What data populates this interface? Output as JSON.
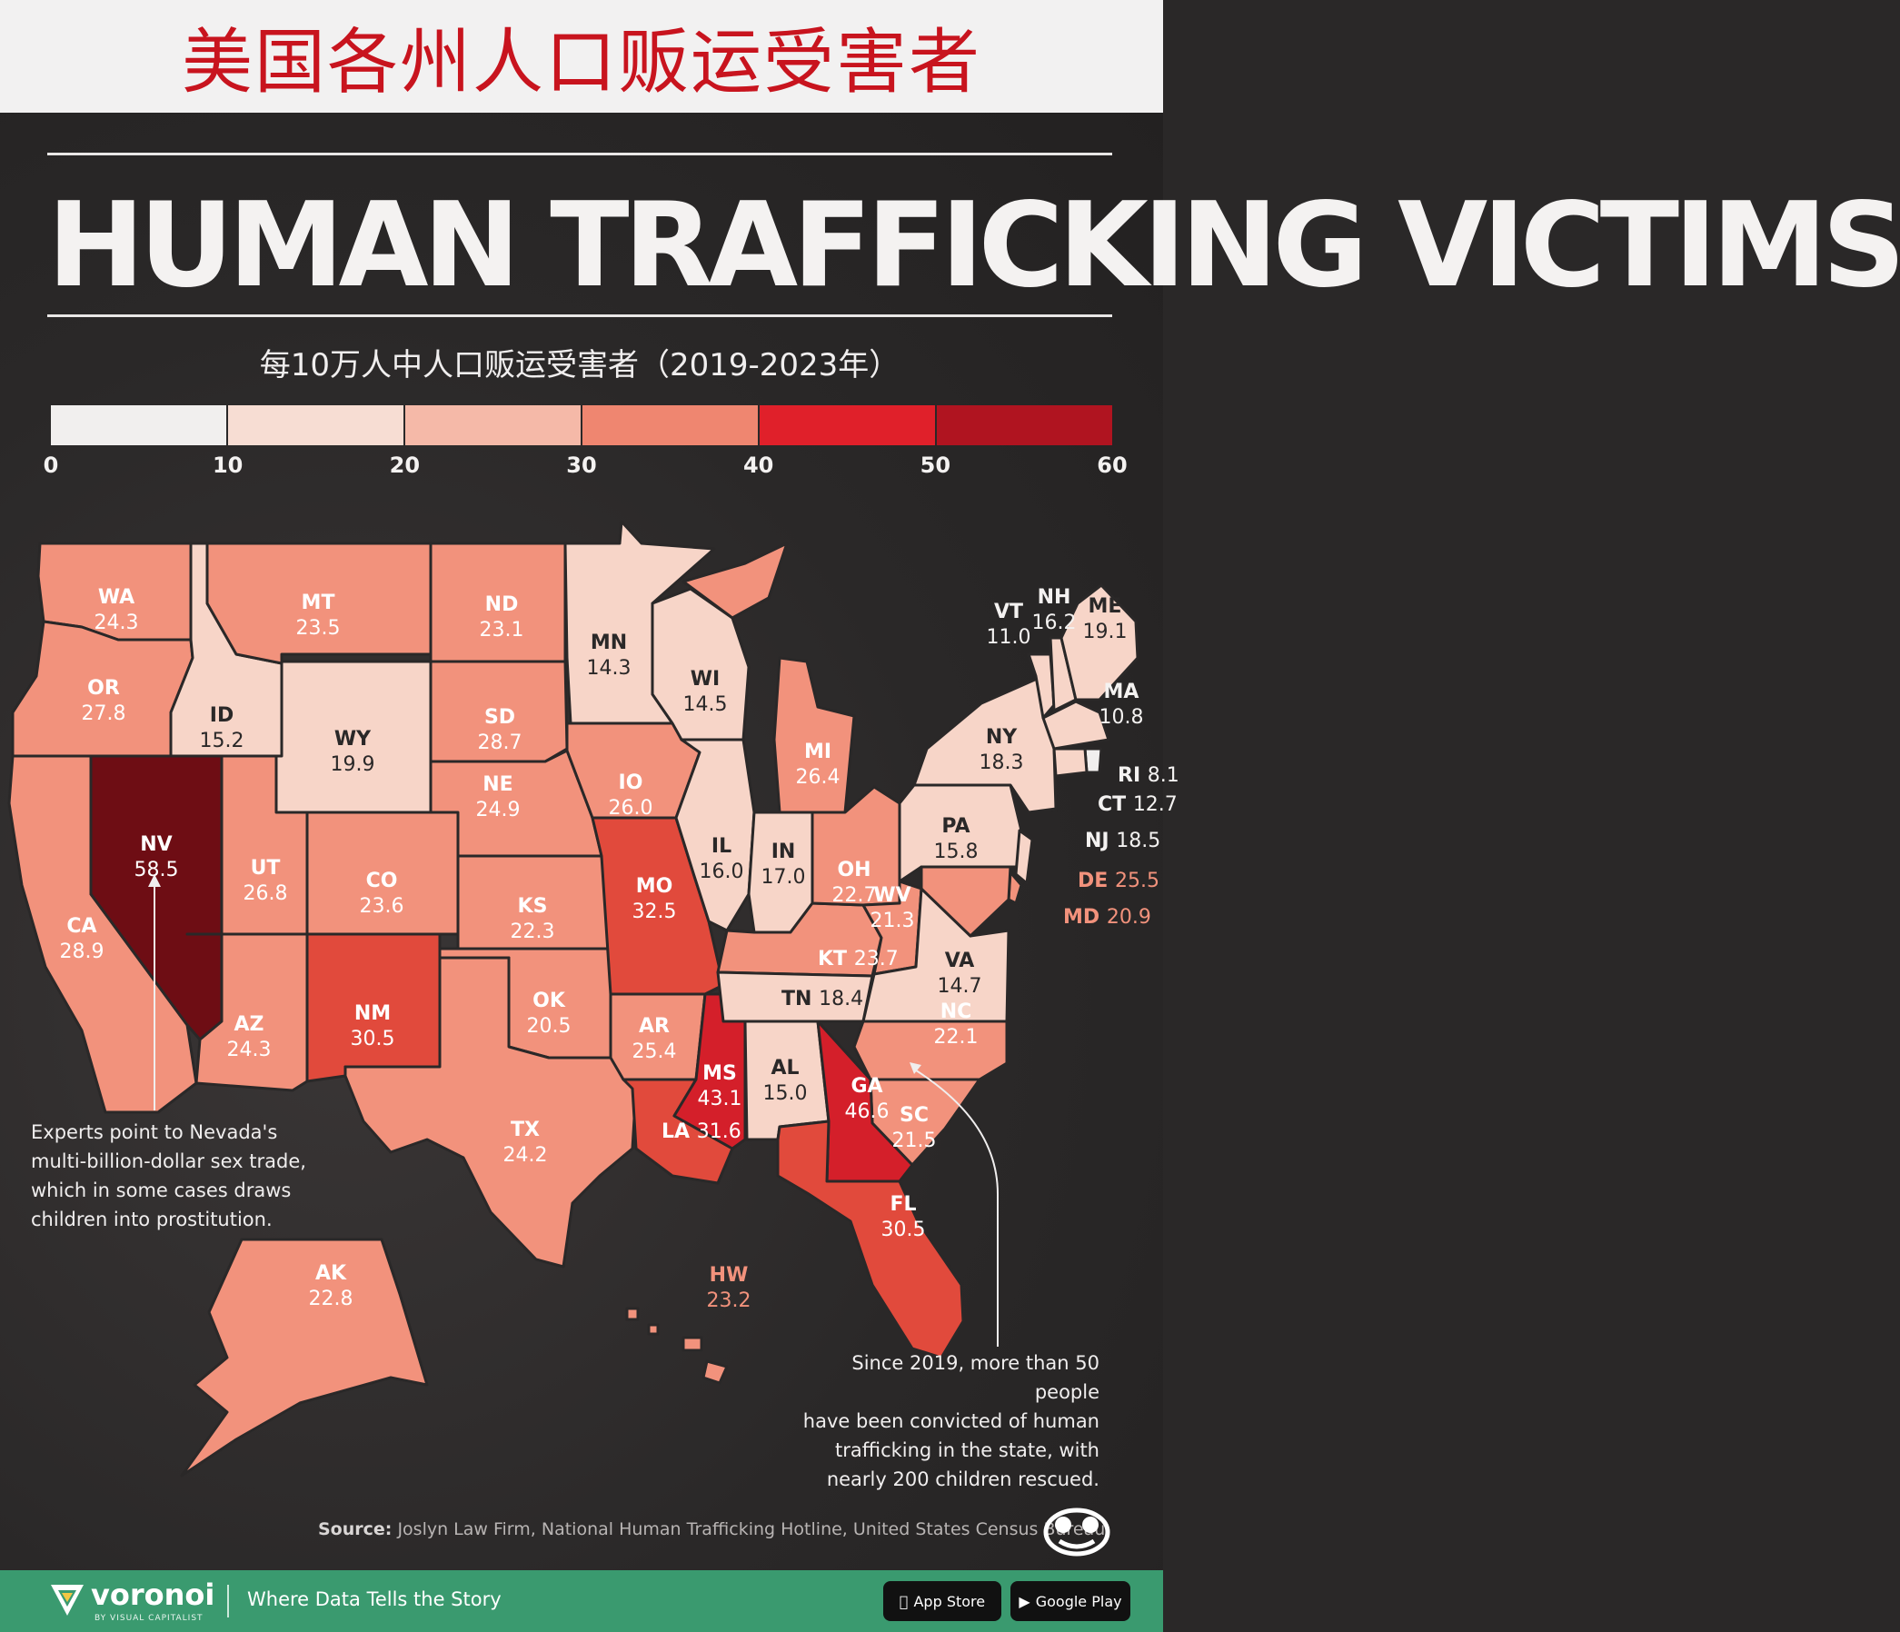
{
  "banner": {
    "title": "美国各州人口贩运受害者"
  },
  "header": {
    "title": "HUMAN TRAFFICKING VICTIMS",
    "subtitle": "每10万人中人口贩运受害者（2019-2023年）"
  },
  "legend": {
    "ticks": [
      "0",
      "10",
      "20",
      "30",
      "40",
      "50",
      "60"
    ],
    "colors": [
      "#f1efee",
      "#f7ddd3",
      "#f5b9a8",
      "#ef8670",
      "#e0202a",
      "#b01420"
    ]
  },
  "colors": {
    "c1": "#f1efee",
    "c2": "#f7d5c8",
    "c3": "#f2927c",
    "c4": "#e14a3c",
    "c5": "#d41f2a",
    "c6": "#6e0d14",
    "text_light": "#ffffff",
    "text_dark": "#2a2828",
    "outline": "#2a2828"
  },
  "states": [
    {
      "code": "WA",
      "value": "24.3"
    },
    {
      "code": "OR",
      "value": "27.8"
    },
    {
      "code": "CA",
      "value": "28.9"
    },
    {
      "code": "NV",
      "value": "58.5"
    },
    {
      "code": "ID",
      "value": "15.2"
    },
    {
      "code": "MT",
      "value": "23.5"
    },
    {
      "code": "WY",
      "value": "19.9"
    },
    {
      "code": "UT",
      "value": "26.8"
    },
    {
      "code": "AZ",
      "value": "24.3"
    },
    {
      "code": "CO",
      "value": "23.6"
    },
    {
      "code": "NM",
      "value": "30.5"
    },
    {
      "code": "ND",
      "value": "23.1"
    },
    {
      "code": "SD",
      "value": "28.7"
    },
    {
      "code": "NE",
      "value": "24.9"
    },
    {
      "code": "KS",
      "value": "22.3"
    },
    {
      "code": "OK",
      "value": "20.5"
    },
    {
      "code": "TX",
      "value": "24.2"
    },
    {
      "code": "MN",
      "value": "14.3"
    },
    {
      "code": "IO",
      "value": "26.0"
    },
    {
      "code": "MO",
      "value": "32.5"
    },
    {
      "code": "AR",
      "value": "25.4"
    },
    {
      "code": "LA",
      "value": "31.6"
    },
    {
      "code": "WI",
      "value": "14.5"
    },
    {
      "code": "IL",
      "value": "16.0"
    },
    {
      "code": "MS",
      "value": "43.1"
    },
    {
      "code": "MI",
      "value": "26.4"
    },
    {
      "code": "IN",
      "value": "17.0"
    },
    {
      "code": "KT",
      "value": "23.7"
    },
    {
      "code": "TN",
      "value": "18.4"
    },
    {
      "code": "AL",
      "value": "15.0"
    },
    {
      "code": "OH",
      "value": "22.7"
    },
    {
      "code": "WV",
      "value": "21.3"
    },
    {
      "code": "VA",
      "value": "14.7"
    },
    {
      "code": "NC",
      "value": "22.1"
    },
    {
      "code": "SC",
      "value": "21.5"
    },
    {
      "code": "GA",
      "value": "46.6"
    },
    {
      "code": "FL",
      "value": "30.5"
    },
    {
      "code": "PA",
      "value": "15.8"
    },
    {
      "code": "NY",
      "value": "18.3"
    },
    {
      "code": "VT",
      "value": "11.0"
    },
    {
      "code": "NH",
      "value": "16.2"
    },
    {
      "code": "ME",
      "value": "19.1"
    },
    {
      "code": "MA",
      "value": "10.8"
    },
    {
      "code": "RI",
      "value": "8.1"
    },
    {
      "code": "CT",
      "value": "12.7"
    },
    {
      "code": "NJ",
      "value": "18.5"
    },
    {
      "code": "DE",
      "value": "25.5"
    },
    {
      "code": "MD",
      "value": "20.9"
    },
    {
      "code": "AK",
      "value": "22.8"
    },
    {
      "code": "HW",
      "value": "23.2"
    }
  ],
  "annotations": {
    "nevada": [
      "Experts point to Nevada's",
      "multi-billion-dollar sex trade,",
      "which in some cases draws",
      "children into prostitution."
    ],
    "georgia": [
      "Since 2019, more than 50 people",
      "have been convicted of human",
      "trafficking in the state, with",
      "nearly 200 children rescued."
    ]
  },
  "source": {
    "label": "Source:",
    "text": "Joslyn Law Firm, National Human Trafficking Hotline, United States Census Bureau"
  },
  "footer": {
    "brand": "voronoi",
    "brand_sub": "BY VISUAL CAPITALIST",
    "tagline": "Where Data Tells the Story",
    "app_store": "App Store",
    "google_play": "Google Play"
  }
}
